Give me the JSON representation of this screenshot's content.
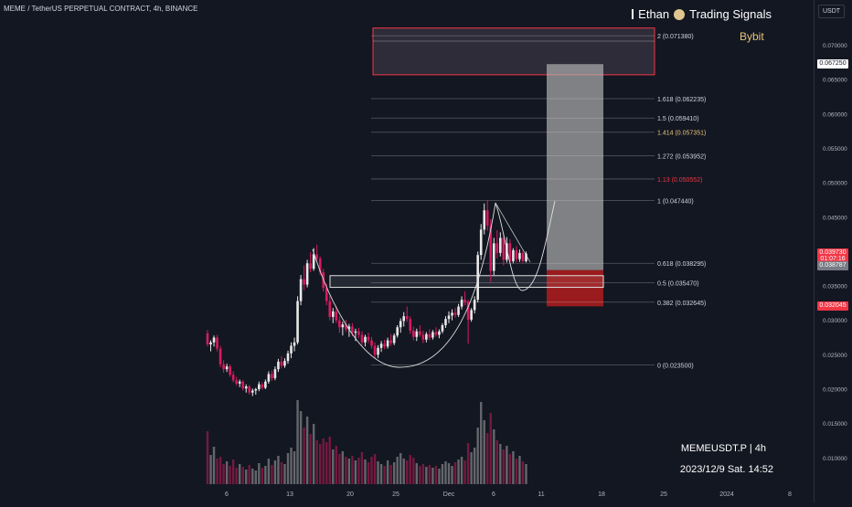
{
  "header": {
    "title": "MEME / TetherUS PERPETUAL CONTRACT, 4h, BINANCE"
  },
  "brand": {
    "name": "Ethan",
    "signals": "Trading Signals",
    "exchange": "Bybit"
  },
  "footer": {
    "symbol": "MEMEUSDT.P | 4h",
    "datetime": "2023/12/9 Sat. 14:52"
  },
  "axis": {
    "currency": "USDT"
  },
  "colors": {
    "background": "#131722",
    "bull": "#e8e8e8",
    "bear": "#d81b60",
    "zone_red": "#b71c1c",
    "accent_red": "#f23645",
    "brand": "#e8c47a"
  },
  "chart_data": {
    "type": "candlestick",
    "ylim": [
      0.0053,
      0.0758
    ],
    "y_ticks": [
      "0.070000",
      "0.065000",
      "0.060000",
      "0.055000",
      "0.050000",
      "0.045000",
      "0.040000",
      "0.035000",
      "0.030000",
      "0.025000",
      "0.020000",
      "0.015000",
      "0.010000"
    ],
    "x_ticks": [
      "6",
      "13",
      "20",
      "25",
      "Dec",
      "6",
      "11",
      "18",
      "25",
      "2024",
      "8"
    ],
    "price_tags": [
      {
        "label": "0.067250",
        "value": 0.06725,
        "style": "white"
      },
      {
        "label": "0.039730",
        "value": 0.03973,
        "style": "red"
      },
      {
        "label": "01:07:16",
        "value": 0.0388,
        "style": "red"
      },
      {
        "label": "0.038787",
        "value": 0.037868,
        "style": "grey"
      },
      {
        "label": "0.032045",
        "value": 0.032045,
        "style": "red"
      }
    ],
    "fib_levels": [
      {
        "label": "2 (0.071380)",
        "value": 0.07138,
        "color": "#d1d4dc"
      },
      {
        "label": "1.618 (0.062235)",
        "value": 0.062235,
        "color": "#d1d4dc"
      },
      {
        "label": "1.5 (0.059410)",
        "value": 0.05941,
        "color": "#d1d4dc"
      },
      {
        "label": "1.414 (0.057351)",
        "value": 0.057351,
        "color": "#e8c47a"
      },
      {
        "label": "1.272 (0.053952)",
        "value": 0.053952,
        "color": "#d1d4dc"
      },
      {
        "label": "1.13 (0.050552)",
        "value": 0.050552,
        "color": "#f23645"
      },
      {
        "label": "1 (0.047440)",
        "value": 0.04744,
        "color": "#d1d4dc"
      },
      {
        "label": "0.618 (0.038295)",
        "value": 0.038295,
        "color": "#d1d4dc"
      },
      {
        "label": "0.5 (0.035470)",
        "value": 0.03547,
        "color": "#d1d4dc"
      },
      {
        "label": "0.382 (0.032645)",
        "value": 0.032645,
        "color": "#d1d4dc"
      },
      {
        "label": "0 (0.023500)",
        "value": 0.0235,
        "color": "#d1d4dc"
      }
    ],
    "zones": {
      "target_box": {
        "top": 0.0725,
        "bottom": 0.0657
      },
      "breakout_box": {
        "top": 0.0365,
        "bottom": 0.0348
      },
      "long_position": {
        "entry": 0.0373,
        "target": 0.06725,
        "stop": 0.032045
      }
    },
    "candles": [
      [
        0.0281,
        0.0286,
        0.0262,
        0.0265
      ],
      [
        0.0265,
        0.0271,
        0.0255,
        0.0268
      ],
      [
        0.0268,
        0.0278,
        0.0262,
        0.0275
      ],
      [
        0.0275,
        0.0279,
        0.0255,
        0.0259
      ],
      [
        0.0259,
        0.0263,
        0.0232,
        0.0236
      ],
      [
        0.0236,
        0.0242,
        0.0224,
        0.0229
      ],
      [
        0.0229,
        0.0237,
        0.0225,
        0.0233
      ],
      [
        0.0233,
        0.0236,
        0.0218,
        0.0221
      ],
      [
        0.0221,
        0.0226,
        0.021,
        0.0213
      ],
      [
        0.0213,
        0.0218,
        0.0205,
        0.0208
      ],
      [
        0.0208,
        0.0214,
        0.0203,
        0.0211
      ],
      [
        0.0211,
        0.0213,
        0.0198,
        0.0201
      ],
      [
        0.0201,
        0.0207,
        0.0195,
        0.0204
      ],
      [
        0.0204,
        0.0206,
        0.0192,
        0.0195
      ],
      [
        0.0195,
        0.0201,
        0.019,
        0.0198
      ],
      [
        0.0198,
        0.0202,
        0.0192,
        0.02
      ],
      [
        0.02,
        0.0211,
        0.0197,
        0.0207
      ],
      [
        0.0207,
        0.021,
        0.0199,
        0.0202
      ],
      [
        0.0202,
        0.0214,
        0.02,
        0.0211
      ],
      [
        0.0211,
        0.0226,
        0.0208,
        0.0222
      ],
      [
        0.0222,
        0.0227,
        0.0212,
        0.0216
      ],
      [
        0.0216,
        0.0233,
        0.0213,
        0.0229
      ],
      [
        0.0229,
        0.0244,
        0.0225,
        0.024
      ],
      [
        0.024,
        0.0248,
        0.023,
        0.0234
      ],
      [
        0.0234,
        0.0245,
        0.0231,
        0.0241
      ],
      [
        0.0241,
        0.0256,
        0.0237,
        0.0252
      ],
      [
        0.0252,
        0.0268,
        0.0245,
        0.0263
      ],
      [
        0.0263,
        0.0275,
        0.0255,
        0.0268
      ],
      [
        0.0268,
        0.0335,
        0.0265,
        0.0328
      ],
      [
        0.0328,
        0.0366,
        0.0322,
        0.036
      ],
      [
        0.036,
        0.038,
        0.0344,
        0.0352
      ],
      [
        0.0352,
        0.0388,
        0.0348,
        0.0383
      ],
      [
        0.0383,
        0.0399,
        0.037,
        0.0375
      ],
      [
        0.0375,
        0.0405,
        0.0372,
        0.0396
      ],
      [
        0.0396,
        0.041,
        0.0385,
        0.039
      ],
      [
        0.039,
        0.0393,
        0.0366,
        0.037
      ],
      [
        0.037,
        0.0375,
        0.0342,
        0.0347
      ],
      [
        0.0347,
        0.0353,
        0.0322,
        0.0328
      ],
      [
        0.0328,
        0.0336,
        0.03,
        0.0305
      ],
      [
        0.0305,
        0.0318,
        0.0296,
        0.0313
      ],
      [
        0.0313,
        0.0321,
        0.0296,
        0.03
      ],
      [
        0.03,
        0.0306,
        0.0282,
        0.029
      ],
      [
        0.029,
        0.0298,
        0.0278,
        0.0294
      ],
      [
        0.0294,
        0.0301,
        0.0283,
        0.0287
      ],
      [
        0.0287,
        0.0295,
        0.0276,
        0.0291
      ],
      [
        0.0291,
        0.0296,
        0.0277,
        0.0282
      ],
      [
        0.0282,
        0.0288,
        0.027,
        0.0284
      ],
      [
        0.0284,
        0.0289,
        0.0274,
        0.0279
      ],
      [
        0.0279,
        0.0284,
        0.0264,
        0.0268
      ],
      [
        0.0268,
        0.0279,
        0.0262,
        0.0276
      ],
      [
        0.0276,
        0.0282,
        0.0267,
        0.0271
      ],
      [
        0.0271,
        0.0276,
        0.0259,
        0.0263
      ],
      [
        0.0263,
        0.0268,
        0.0245,
        0.025
      ],
      [
        0.025,
        0.0264,
        0.0245,
        0.026
      ],
      [
        0.026,
        0.027,
        0.0254,
        0.0266
      ],
      [
        0.0266,
        0.0272,
        0.0258,
        0.0262
      ],
      [
        0.0262,
        0.0275,
        0.0259,
        0.0271
      ],
      [
        0.0271,
        0.028,
        0.0263,
        0.0267
      ],
      [
        0.0267,
        0.0281,
        0.0264,
        0.0278
      ],
      [
        0.0278,
        0.0293,
        0.0275,
        0.029
      ],
      [
        0.029,
        0.0303,
        0.0282,
        0.0299
      ],
      [
        0.0299,
        0.0312,
        0.0291,
        0.0306
      ],
      [
        0.0306,
        0.032,
        0.0298,
        0.0302
      ],
      [
        0.0302,
        0.0306,
        0.028,
        0.0285
      ],
      [
        0.0285,
        0.0291,
        0.0271,
        0.0276
      ],
      [
        0.0276,
        0.0288,
        0.027,
        0.0284
      ],
      [
        0.0284,
        0.0293,
        0.0276,
        0.0279
      ],
      [
        0.0279,
        0.0285,
        0.0267,
        0.0272
      ],
      [
        0.0272,
        0.0283,
        0.0268,
        0.028
      ],
      [
        0.028,
        0.0287,
        0.0271,
        0.0275
      ],
      [
        0.0275,
        0.0286,
        0.0272,
        0.0283
      ],
      [
        0.0283,
        0.029,
        0.0276,
        0.0279
      ],
      [
        0.0279,
        0.0287,
        0.0274,
        0.0284
      ],
      [
        0.0284,
        0.0296,
        0.0281,
        0.0293
      ],
      [
        0.0293,
        0.0306,
        0.0289,
        0.0302
      ],
      [
        0.0302,
        0.0313,
        0.0296,
        0.0307
      ],
      [
        0.0307,
        0.0316,
        0.03,
        0.0311
      ],
      [
        0.0311,
        0.0318,
        0.0304,
        0.0308
      ],
      [
        0.0308,
        0.0324,
        0.0305,
        0.032
      ],
      [
        0.032,
        0.0335,
        0.0316,
        0.033
      ],
      [
        0.033,
        0.0342,
        0.0322,
        0.0327
      ],
      [
        0.0327,
        0.033,
        0.0266,
        0.0301
      ],
      [
        0.0301,
        0.0318,
        0.0298,
        0.0315
      ],
      [
        0.0315,
        0.0335,
        0.031,
        0.033
      ],
      [
        0.033,
        0.04,
        0.0326,
        0.0395
      ],
      [
        0.0395,
        0.044,
        0.0388,
        0.0432
      ],
      [
        0.0432,
        0.047,
        0.0425,
        0.046
      ],
      [
        0.046,
        0.0474,
        0.043,
        0.0438
      ],
      [
        0.0438,
        0.0447,
        0.0356,
        0.0372
      ],
      [
        0.0372,
        0.042,
        0.0366,
        0.0412
      ],
      [
        0.0412,
        0.0431,
        0.039,
        0.0398
      ],
      [
        0.0398,
        0.0428,
        0.0393,
        0.042
      ],
      [
        0.042,
        0.0426,
        0.038,
        0.0388
      ],
      [
        0.0388,
        0.0421,
        0.0384,
        0.0412
      ],
      [
        0.0412,
        0.0418,
        0.0382,
        0.0386
      ],
      [
        0.0386,
        0.0405,
        0.0383,
        0.0402
      ],
      [
        0.0402,
        0.0408,
        0.0384,
        0.0389
      ],
      [
        0.0389,
        0.0403,
        0.0385,
        0.0398
      ],
      [
        0.0398,
        0.0401,
        0.0383,
        0.0386
      ],
      [
        0.0386,
        0.04,
        0.0384,
        0.0397
      ]
    ],
    "volumes": [
      0.58,
      0.32,
      0.41,
      0.28,
      0.3,
      0.22,
      0.25,
      0.2,
      0.27,
      0.18,
      0.22,
      0.19,
      0.16,
      0.21,
      0.17,
      0.15,
      0.23,
      0.18,
      0.2,
      0.28,
      0.21,
      0.26,
      0.31,
      0.24,
      0.22,
      0.34,
      0.4,
      0.36,
      0.92,
      0.8,
      0.62,
      0.74,
      0.55,
      0.66,
      0.48,
      0.44,
      0.5,
      0.46,
      0.52,
      0.38,
      0.42,
      0.33,
      0.36,
      0.3,
      0.28,
      0.31,
      0.26,
      0.29,
      0.35,
      0.27,
      0.24,
      0.3,
      0.33,
      0.25,
      0.22,
      0.2,
      0.26,
      0.21,
      0.24,
      0.3,
      0.34,
      0.28,
      0.26,
      0.32,
      0.29,
      0.23,
      0.2,
      0.22,
      0.19,
      0.21,
      0.18,
      0.2,
      0.17,
      0.22,
      0.25,
      0.23,
      0.2,
      0.24,
      0.27,
      0.3,
      0.26,
      0.45,
      0.35,
      0.4,
      0.62,
      0.9,
      0.7,
      0.56,
      0.78,
      0.6,
      0.48,
      0.44,
      0.38,
      0.42,
      0.33,
      0.36,
      0.28,
      0.31,
      0.25,
      0.22
    ]
  }
}
